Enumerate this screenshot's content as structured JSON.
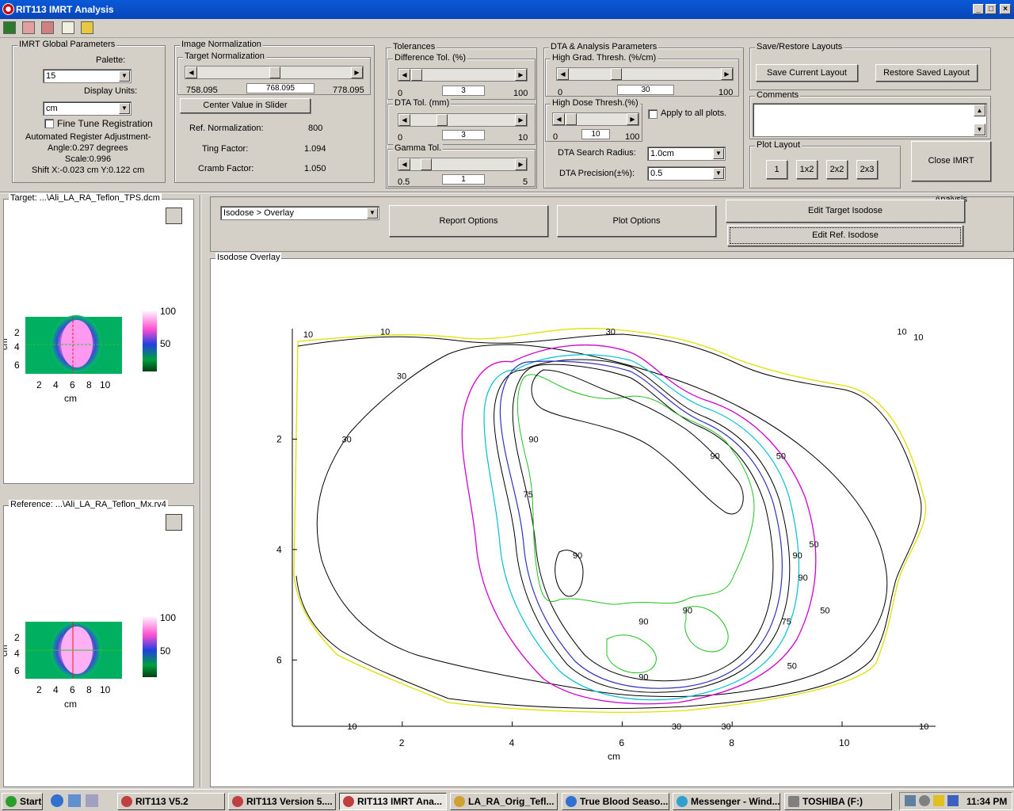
{
  "window": {
    "title": "RIT113 IMRT Analysis"
  },
  "global": {
    "legend": "IMRT Global Parameters",
    "palette_label": "Palette:",
    "palette_value": "15",
    "units_label": "Display Units:",
    "units_value": "cm",
    "fine_tune": "Fine Tune Registration",
    "auto_reg": "Automated Register Adjustment-",
    "angle": "Angle:0.297 degrees",
    "scale": "Scale:0.996",
    "shift": "Shift X:-0.023 cm Y:0.122 cm"
  },
  "norm": {
    "legend": "Image Normalization",
    "target_legend": "Target Normalization",
    "min": "758.095",
    "val": "768.095",
    "max": "778.095",
    "center_btn": "Center Value in Slider",
    "ref_label": "Ref. Normalization:",
    "ref_value": "800",
    "ting_label": "Ting Factor:",
    "ting_value": "1.094",
    "cramb_label": "Cramb Factor:",
    "cramb_value": "1.050"
  },
  "tol": {
    "legend": "Tolerances",
    "diff_legend": "Difference Tol. (%)",
    "diff_min": "0",
    "diff_val": "3",
    "diff_max": "100",
    "dta_legend": "DTA Tol. (mm)",
    "dta_min": "0",
    "dta_val": "3",
    "dta_max": "10",
    "gamma_legend": "Gamma Tol.",
    "gamma_min": "0.5",
    "gamma_val": "1",
    "gamma_max": "5"
  },
  "dta": {
    "legend": "DTA & Analysis Parameters",
    "hg_legend": "High Grad. Thresh. (%/cm)",
    "hg_min": "0",
    "hg_val": "30",
    "hg_max": "100",
    "hd_legend": "High Dose Thresh.(%)",
    "hd_min": "0",
    "hd_val": "10",
    "hd_max": "100",
    "apply_all": "Apply to all plots.",
    "radius_label": "DTA Search Radius:",
    "radius_value": "1.0cm",
    "precision_label": "DTA Precision(±%):",
    "precision_value": "0.5"
  },
  "layouts": {
    "legend": "Save/Restore Layouts",
    "save_btn": "Save Current Layout",
    "restore_btn": "Restore Saved Layout",
    "comments_legend": "Comments",
    "plot_layout_legend": "Plot Layout",
    "l1": "1",
    "l2": "1x2",
    "l3": "2x2",
    "l4": "2x3",
    "close_btn": "Close IMRT Analysis"
  },
  "target_panel": {
    "title": "Target: ...\\Ali_LA_RA_Teflon_TPS.dcm",
    "cb_max": "100",
    "cb_mid": "50",
    "xlabel": "cm",
    "ylabel": "cm",
    "yt": [
      "2",
      "4",
      "6"
    ],
    "xt": [
      "2",
      "4",
      "6",
      "8",
      "10"
    ]
  },
  "ref_panel": {
    "title": "Reference: ...\\Ali_LA_RA_Teflon_Mx.rv4",
    "cb_max": "100",
    "cb_mid": "50",
    "xlabel": "cm",
    "ylabel": "cm",
    "yt": [
      "2",
      "4",
      "6"
    ],
    "xt": [
      "2",
      "4",
      "6",
      "8",
      "10"
    ]
  },
  "controls": {
    "view_combo": "Isodose > Overlay",
    "report_btn": "Report Options",
    "plot_btn": "Plot Options",
    "edit_target_btn": "Edit Target Isodose",
    "edit_ref_btn": "Edit Ref. Isodose"
  },
  "chart_data": {
    "type": "contour",
    "title": "Isodose Overlay",
    "xlabel": "cm",
    "xlim": [
      0,
      11.7
    ],
    "ylim": [
      0,
      7.2
    ],
    "x_ticks": [
      "2",
      "4",
      "6",
      "8",
      "10"
    ],
    "y_ticks": [
      "2",
      "4",
      "6"
    ],
    "contour_levels": [
      "10",
      "30",
      "50",
      "75",
      "90"
    ],
    "labels": [
      {
        "text": "10",
        "x": 0.2,
        "y": 0.1
      },
      {
        "text": "10",
        "x": 1.6,
        "y": 0.05
      },
      {
        "text": "30",
        "x": 5.7,
        "y": 0.05
      },
      {
        "text": "10",
        "x": 11.0,
        "y": 0.05
      },
      {
        "text": "10",
        "x": 11.3,
        "y": 0.15
      },
      {
        "text": "30",
        "x": 1.9,
        "y": 0.85
      },
      {
        "text": "30",
        "x": 0.9,
        "y": 2.0
      },
      {
        "text": "90",
        "x": 4.3,
        "y": 2.0
      },
      {
        "text": "90",
        "x": 7.6,
        "y": 2.3
      },
      {
        "text": "50",
        "x": 8.8,
        "y": 2.3
      },
      {
        "text": "75",
        "x": 4.2,
        "y": 3.0
      },
      {
        "text": "50",
        "x": 9.4,
        "y": 3.9
      },
      {
        "text": "90",
        "x": 5.1,
        "y": 4.1
      },
      {
        "text": "90",
        "x": 9.1,
        "y": 4.1
      },
      {
        "text": "90",
        "x": 9.2,
        "y": 4.5
      },
      {
        "text": "90",
        "x": 6.3,
        "y": 5.3
      },
      {
        "text": "90",
        "x": 7.1,
        "y": 5.1
      },
      {
        "text": "75",
        "x": 8.9,
        "y": 5.3
      },
      {
        "text": "50",
        "x": 9.6,
        "y": 5.1
      },
      {
        "text": "90",
        "x": 6.3,
        "y": 6.3
      },
      {
        "text": "50",
        "x": 9.0,
        "y": 6.1
      },
      {
        "text": "10",
        "x": 1.0,
        "y": 7.2
      },
      {
        "text": "30",
        "x": 6.9,
        "y": 7.2
      },
      {
        "text": "30",
        "x": 7.8,
        "y": 7.2
      },
      {
        "text": "10",
        "x": 11.4,
        "y": 7.2
      }
    ]
  },
  "taskbar": {
    "start": "Start",
    "t1": "RIT113 V5.2",
    "t2": "RIT113 Version 5....",
    "t3": "RIT113 IMRT Ana...",
    "t4": "LA_RA_Orig_Tefl...",
    "t5": "True Blood Seaso...",
    "t6": "Messenger - Wind...",
    "t7": "TOSHIBA (F:)",
    "clock": "11:34 PM"
  },
  "colors": {
    "titlebar": "#0a58d8",
    "face": "#d4d0c8"
  }
}
